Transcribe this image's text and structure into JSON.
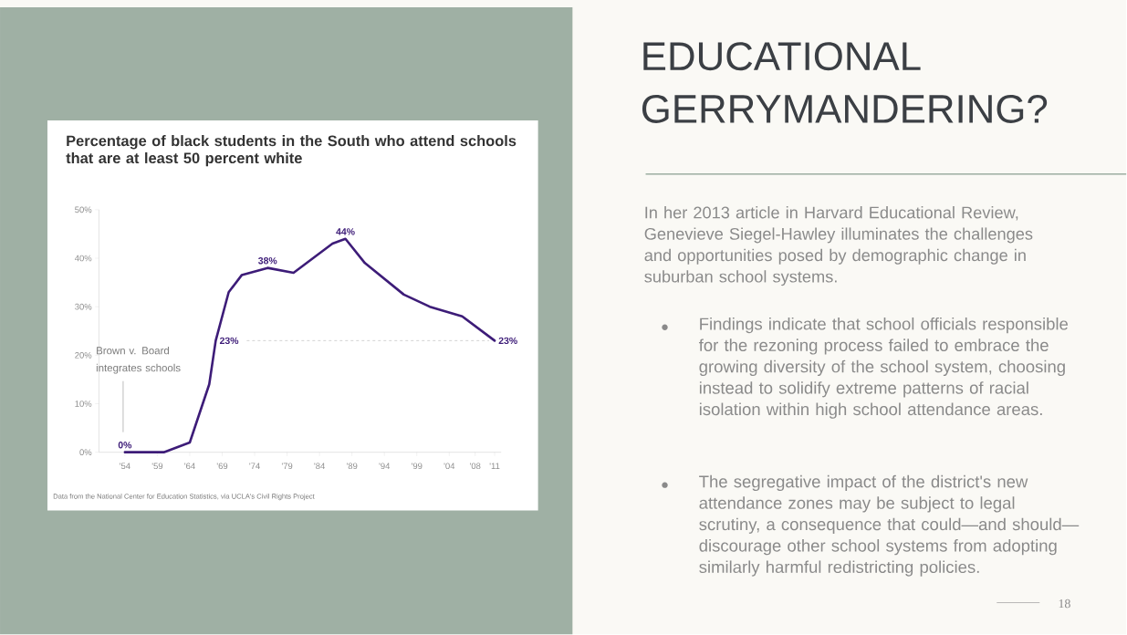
{
  "chart_data": {
    "type": "line",
    "title": "Percentage of black students in the South who attend schools that are at least 50 percent white",
    "x": [
      1954,
      1960,
      1964,
      1967,
      1968,
      1970,
      1972,
      1976,
      1980,
      1986,
      1988,
      1991,
      1997,
      2001,
      2006,
      2011
    ],
    "values": [
      0,
      0,
      2,
      14,
      23,
      33,
      36.5,
      38,
      37,
      43,
      44,
      39,
      32.5,
      30,
      28,
      23
    ],
    "value_labels": [
      "0%",
      null,
      null,
      null,
      "23%",
      null,
      null,
      "38%",
      null,
      null,
      "44%",
      null,
      null,
      null,
      null,
      "23%"
    ],
    "color": "#3d1c78",
    "xlim": [
      1950,
      2012
    ],
    "ylim": [
      0,
      50
    ],
    "xticks": [
      {
        "value": 1954,
        "label": "'54"
      },
      {
        "value": 1959,
        "label": "'59"
      },
      {
        "value": 1964,
        "label": "'64"
      },
      {
        "value": 1969,
        "label": "'69"
      },
      {
        "value": 1974,
        "label": "'74"
      },
      {
        "value": 1979,
        "label": "'79"
      },
      {
        "value": 1984,
        "label": "'84"
      },
      {
        "value": 1989,
        "label": "'89"
      },
      {
        "value": 1994,
        "label": "'94"
      },
      {
        "value": 1999,
        "label": "'99"
      },
      {
        "value": 2004,
        "label": "'04"
      },
      {
        "value": 2008,
        "label": "'08"
      },
      {
        "value": 2011,
        "label": "'11"
      }
    ],
    "yticks": [
      {
        "value": 0,
        "label": "0%"
      },
      {
        "value": 10,
        "label": "10%"
      },
      {
        "value": 20,
        "label": "20%"
      },
      {
        "value": 30,
        "label": "30%"
      },
      {
        "value": 40,
        "label": "40%"
      },
      {
        "value": 50,
        "label": "50%"
      }
    ],
    "ref_lines": [
      {
        "axis": "y",
        "value": 23,
        "color": "#b5b5b5",
        "line_style": "dashed"
      }
    ],
    "annotations": [
      "Brown v. Board integrates schools",
      "Data from the National Center for Education Statistics, via UCLA's Civil Rights Project",
      "EDUCATIONAL GERRYMANDERING?",
      "In her 2013 article in Harvard Educational Review, Genevieve Siegel-Hawley illuminates the challenges and opportunities posed by demographic change in suburban school systems.",
      "Findings indicate that school officials responsible for the rezoning process failed to embrace the growing diversity of the school system, choosing instead to solidify extreme patterns of racial isolation within high school attendance areas.",
      "The segregative impact of the district's new attendance zones may be subject to legal scrutiny, a consequence that could—and should—discourage other school systems from adopting similarly harmful redistricting policies.",
      "18"
    ]
  }
}
